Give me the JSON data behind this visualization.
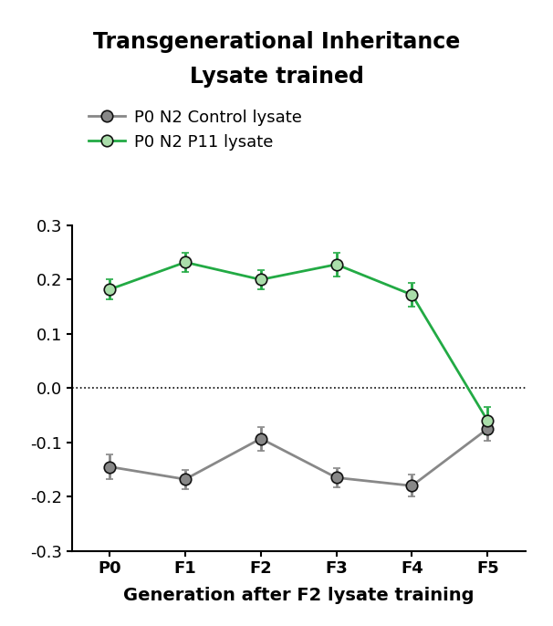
{
  "title_line1": "Transgenerational Inheritance",
  "title_line2": "Lysate trained",
  "xlabel": "Generation after F2 lysate training",
  "x_labels": [
    "P0",
    "F1",
    "F2",
    "F3",
    "F4",
    "F5"
  ],
  "x_values": [
    0,
    1,
    2,
    3,
    4,
    5
  ],
  "control_y": [
    -0.145,
    -0.168,
    -0.093,
    -0.165,
    -0.18,
    -0.075
  ],
  "control_yerr": [
    0.022,
    0.018,
    0.022,
    0.018,
    0.02,
    0.022
  ],
  "control_color": "#888888",
  "control_label": "P0 N2 Control lysate",
  "p11_y": [
    0.182,
    0.232,
    0.2,
    0.228,
    0.172,
    -0.06
  ],
  "p11_yerr": [
    0.018,
    0.018,
    0.018,
    0.022,
    0.022,
    0.025
  ],
  "p11_color": "#22aa44",
  "p11_marker_face": "#aaddaa",
  "p11_label": "P0 N2 P11 lysate",
  "marker_size": 9,
  "marker_edge_color": "#111111",
  "marker_edge_width": 1.2,
  "line_width": 2.0,
  "ylim": [
    -0.3,
    0.3
  ],
  "yticks": [
    -0.3,
    -0.2,
    -0.1,
    0.0,
    0.1,
    0.2,
    0.3
  ],
  "background_color": "#ffffff",
  "title_fontsize": 17,
  "label_fontsize": 14,
  "tick_fontsize": 13,
  "legend_fontsize": 13
}
